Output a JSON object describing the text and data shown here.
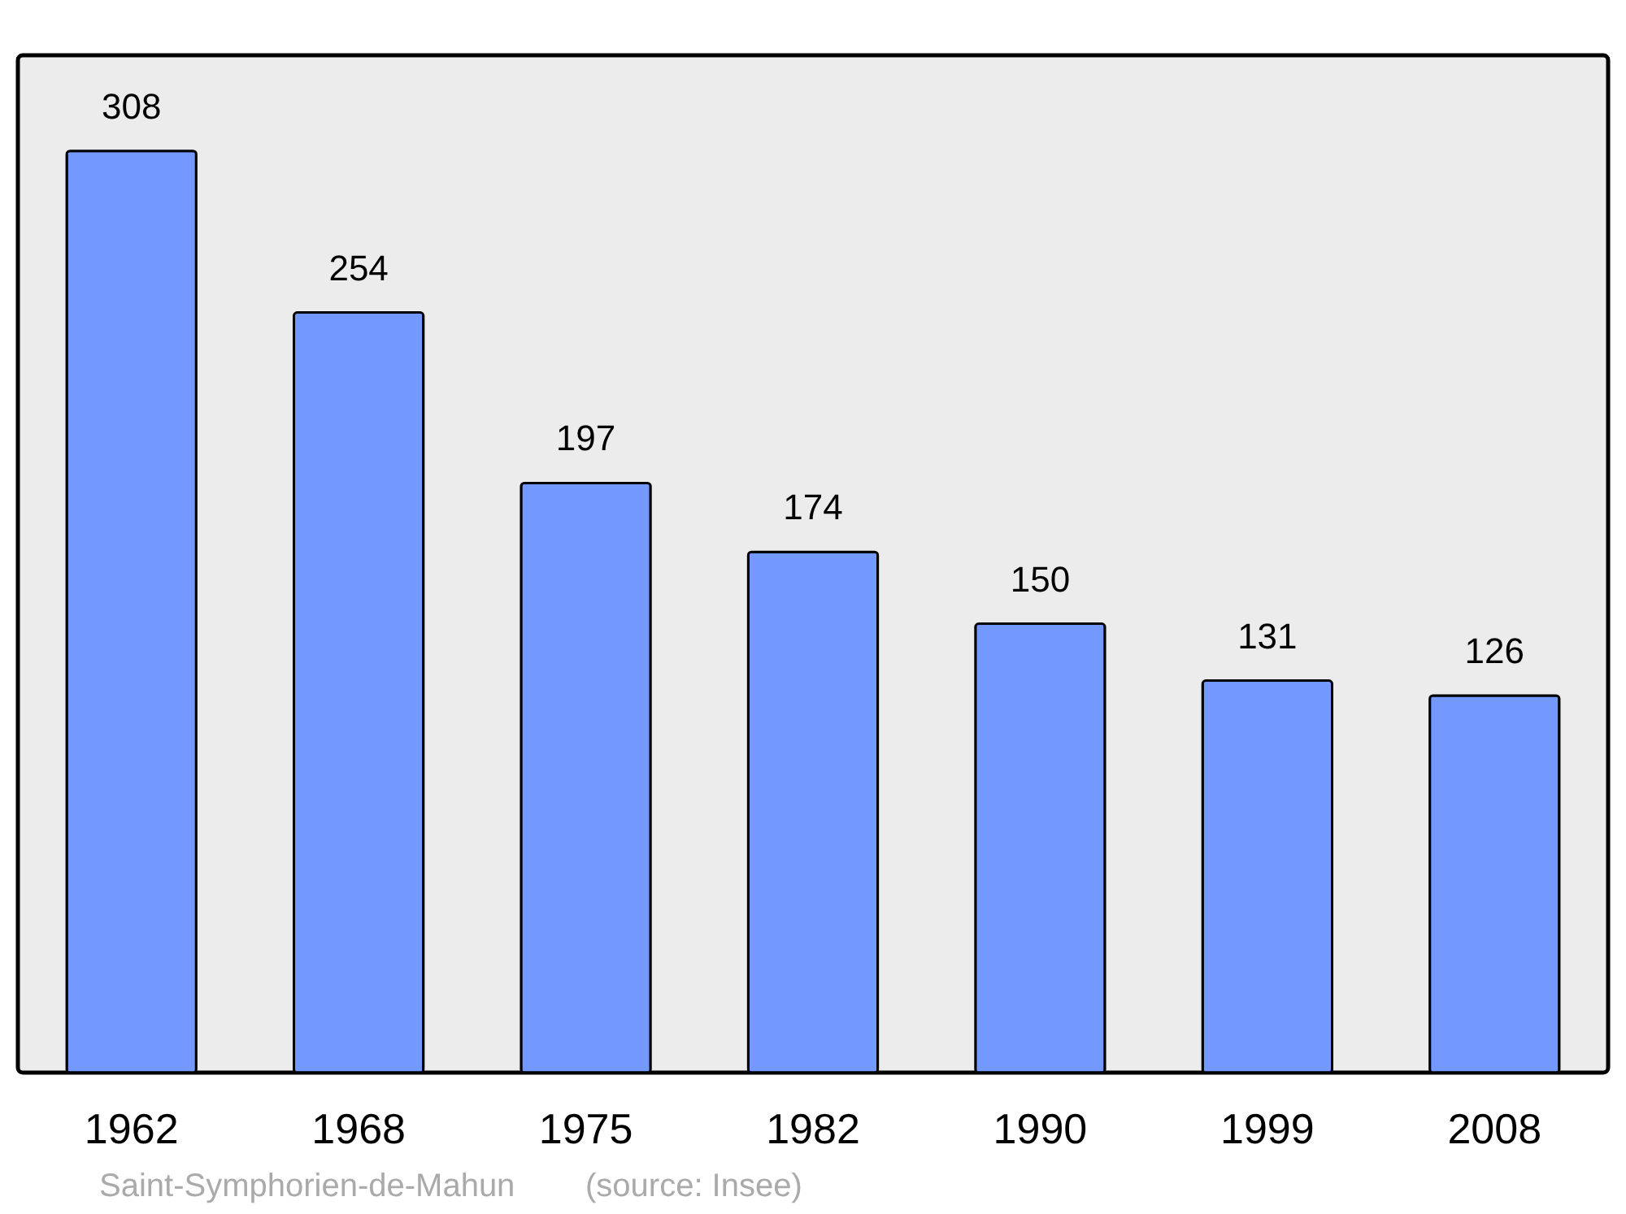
{
  "chart_data": {
    "type": "bar",
    "title": "Saint-Symphorien-de-Mahun",
    "categories": [
      "1962",
      "1968",
      "1975",
      "1982",
      "1990",
      "1999",
      "2008"
    ],
    "values": [
      308,
      254,
      197,
      174,
      150,
      131,
      126
    ],
    "color": "#7399ff",
    "data_labels": true,
    "annotations": [
      "(source: Insee)"
    ]
  }
}
